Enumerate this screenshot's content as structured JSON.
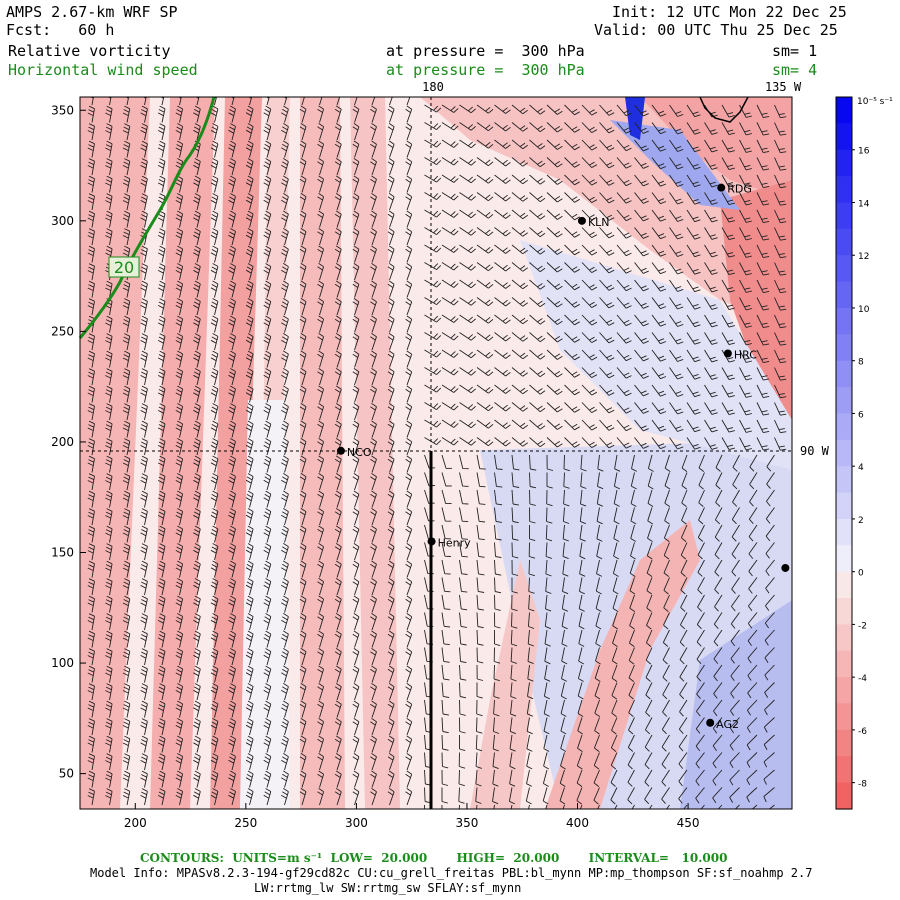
{
  "header": {
    "model_title": "AMPS 2.67-km WRF SP",
    "forecast": "Fcst:   60 h",
    "init": "Init: 12 UTC Mon 22 Dec 25",
    "valid": "Valid: 00 UTC Thu 25 Dec 25",
    "field1_name": "Relative vorticity",
    "field1_level": "at pressure =  300 hPa",
    "field1_smooth": "sm= 1",
    "field2_name": "Horizontal wind speed",
    "field2_level": "at pressure =  300 hPa",
    "field2_smooth": "sm= 4"
  },
  "map": {
    "meridian_180_label": "180",
    "meridian_135w_label": "135 W",
    "meridian_90w_label": "90 W",
    "x_ticks": [
      "200",
      "250",
      "300",
      "350",
      "400",
      "450"
    ],
    "y_ticks": [
      "350",
      "300",
      "250",
      "200",
      "150",
      "100",
      "50"
    ],
    "x_tick_values": [
      200,
      250,
      300,
      350,
      400,
      450
    ],
    "y_tick_values": [
      350,
      300,
      250,
      200,
      150,
      100,
      50
    ],
    "x_range": [
      175,
      497
    ],
    "y_range": [
      34,
      356
    ],
    "stations": [
      {
        "name": "NCO",
        "x": 293,
        "y": 196
      },
      {
        "name": "Henry",
        "x": 334,
        "y": 155
      },
      {
        "name": "KLN",
        "x": 402,
        "y": 300
      },
      {
        "name": "RDG",
        "x": 465,
        "y": 315
      },
      {
        "name": "HRC",
        "x": 468,
        "y": 240
      },
      {
        "name": "AG2",
        "x": 460,
        "y": 73
      },
      {
        "name": "",
        "x": 494,
        "y": 143
      }
    ],
    "wind_contour_label": "20",
    "colors": {
      "positive": "#f26b6b",
      "negative": "#4a4ae8",
      "contour": "#1a8c1a"
    }
  },
  "colorbar": {
    "units": "10⁻⁵ s⁻¹",
    "labels": [
      "16",
      "14",
      "12",
      "10",
      "8",
      "6",
      "4",
      "2",
      "0",
      "-2",
      "-4",
      "-6",
      "-8"
    ],
    "values": [
      16,
      14,
      12,
      10,
      8,
      6,
      4,
      2,
      0,
      -2,
      -4,
      -6,
      -8
    ]
  },
  "footer": {
    "contours_line": "CONTOURS:  UNITS=m s⁻¹  LOW=  20.000       HIGH=  20.000       INTERVAL=   10.000",
    "model_info": "Model Info: MPASv8.2.3-194-gf29cd82c CU:cu_grell_freitas PBL:bl_mynn MP:mp_thompson SF:sf_noahmp 2.7",
    "model_info2": "LW:rrtmg_lw SW:rrtmg_sw SFLAY:sf_mynn"
  }
}
